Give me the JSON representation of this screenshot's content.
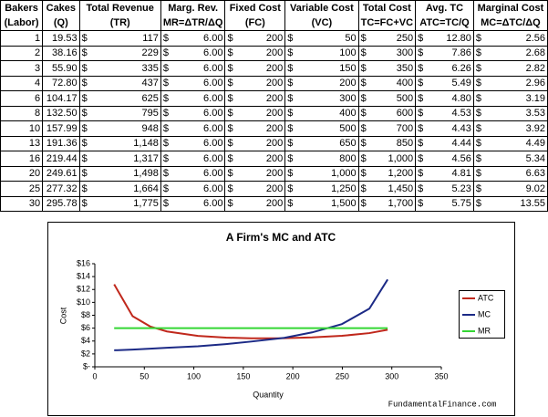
{
  "table": {
    "currency": "$",
    "header": [
      [
        "Bakers",
        "(Labor)"
      ],
      [
        "Cakes",
        "(Q)"
      ],
      [
        "Total Revenue",
        "(TR)"
      ],
      [
        "Marg. Rev.",
        "MR=ΔTR/ΔQ"
      ],
      [
        "Fixed Cost",
        "(FC)"
      ],
      [
        "Variable Cost",
        "(VC)"
      ],
      [
        "Total Cost",
        "TC=FC+VC"
      ],
      [
        "Avg. TC",
        "ATC=TC/Q"
      ],
      [
        "Marginal Cost",
        "MC=ΔTC/ΔQ"
      ]
    ],
    "rows": [
      [
        "1",
        "19.53",
        "117",
        "6.00",
        "200",
        "50",
        "250",
        "12.80",
        "2.56"
      ],
      [
        "2",
        "38.16",
        "229",
        "6.00",
        "200",
        "100",
        "300",
        "7.86",
        "2.68"
      ],
      [
        "3",
        "55.90",
        "335",
        "6.00",
        "200",
        "150",
        "350",
        "6.26",
        "2.82"
      ],
      [
        "4",
        "72.80",
        "437",
        "6.00",
        "200",
        "200",
        "400",
        "5.49",
        "2.96"
      ],
      [
        "6",
        "104.17",
        "625",
        "6.00",
        "200",
        "300",
        "500",
        "4.80",
        "3.19"
      ],
      [
        "8",
        "132.50",
        "795",
        "6.00",
        "200",
        "400",
        "600",
        "4.53",
        "3.53"
      ],
      [
        "10",
        "157.99",
        "948",
        "6.00",
        "200",
        "500",
        "700",
        "4.43",
        "3.92"
      ],
      [
        "13",
        "191.36",
        "1,148",
        "6.00",
        "200",
        "650",
        "850",
        "4.44",
        "4.49"
      ],
      [
        "16",
        "219.44",
        "1,317",
        "6.00",
        "200",
        "800",
        "1,000",
        "4.56",
        "5.34"
      ],
      [
        "20",
        "249.61",
        "1,498",
        "6.00",
        "200",
        "1,000",
        "1,200",
        "4.81",
        "6.63"
      ],
      [
        "25",
        "277.32",
        "1,664",
        "6.00",
        "200",
        "1,250",
        "1,450",
        "5.23",
        "9.02"
      ],
      [
        "30",
        "295.78",
        "1,775",
        "6.00",
        "200",
        "1,500",
        "1,700",
        "5.75",
        "13.55"
      ]
    ]
  },
  "chart_data": {
    "type": "line",
    "title": "A Firm's MC and ATC",
    "x_label": "Quantity",
    "y_label": "Cost",
    "annotation": "FundamentalFinance.com",
    "x": [
      19.53,
      38.16,
      55.9,
      72.8,
      104.17,
      132.5,
      157.99,
      191.36,
      219.44,
      249.61,
      277.32,
      295.78
    ],
    "series": [
      {
        "name": "ATC",
        "color": "#c0281c",
        "values": [
          12.8,
          7.86,
          6.26,
          5.49,
          4.8,
          4.53,
          4.43,
          4.44,
          4.56,
          4.81,
          5.23,
          5.75
        ]
      },
      {
        "name": "MC",
        "color": "#1c2a86",
        "values": [
          2.56,
          2.68,
          2.82,
          2.96,
          3.19,
          3.53,
          3.92,
          4.49,
          5.34,
          6.63,
          9.02,
          13.55
        ]
      },
      {
        "name": "MR",
        "color": "#33d633",
        "values": [
          6,
          6,
          6,
          6,
          6,
          6,
          6,
          6,
          6,
          6,
          6,
          6
        ]
      }
    ],
    "xlim": [
      0,
      350
    ],
    "xticks": [
      0,
      50,
      100,
      150,
      200,
      250,
      300,
      350
    ],
    "ylim": [
      0,
      16
    ],
    "yticks": [
      {
        "value": 0,
        "label": "$-"
      },
      {
        "value": 2,
        "label": "$2"
      },
      {
        "value": 4,
        "label": "$4"
      },
      {
        "value": 6,
        "label": "$6"
      },
      {
        "value": 8,
        "label": "$8"
      },
      {
        "value": 10,
        "label": "$10"
      },
      {
        "value": 12,
        "label": "$12"
      },
      {
        "value": 14,
        "label": "$14"
      },
      {
        "value": 16,
        "label": "$16"
      }
    ],
    "legend": "right"
  }
}
